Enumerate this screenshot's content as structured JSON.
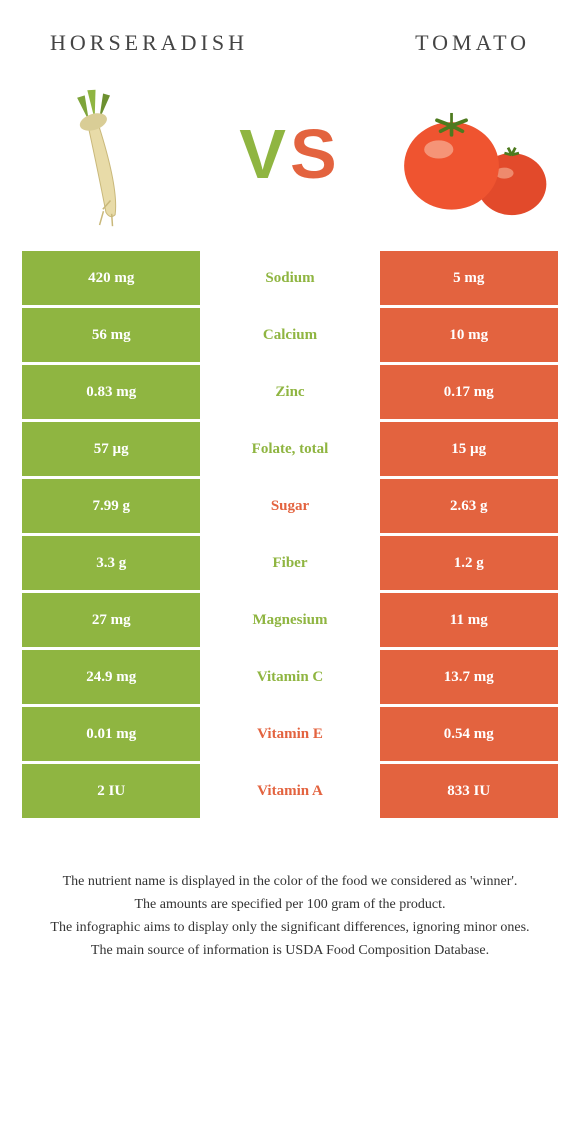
{
  "colors": {
    "left": "#8fb541",
    "right": "#e3633f"
  },
  "header": {
    "left_title": "Horseradish",
    "right_title": "Tomato",
    "vs": "VS"
  },
  "rows": [
    {
      "left": "420 mg",
      "label": "Sodium",
      "right": "5 mg",
      "winner": "left"
    },
    {
      "left": "56 mg",
      "label": "Calcium",
      "right": "10 mg",
      "winner": "left"
    },
    {
      "left": "0.83 mg",
      "label": "Zinc",
      "right": "0.17 mg",
      "winner": "left"
    },
    {
      "left": "57 µg",
      "label": "Folate, total",
      "right": "15 µg",
      "winner": "left"
    },
    {
      "left": "7.99 g",
      "label": "Sugar",
      "right": "2.63 g",
      "winner": "right"
    },
    {
      "left": "3.3 g",
      "label": "Fiber",
      "right": "1.2 g",
      "winner": "left"
    },
    {
      "left": "27 mg",
      "label": "Magnesium",
      "right": "11 mg",
      "winner": "left"
    },
    {
      "left": "24.9 mg",
      "label": "Vitamin C",
      "right": "13.7 mg",
      "winner": "left"
    },
    {
      "left": "0.01 mg",
      "label": "Vitamin E",
      "right": "0.54 mg",
      "winner": "right"
    },
    {
      "left": "2 IU",
      "label": "Vitamin A",
      "right": "833 IU",
      "winner": "right"
    }
  ],
  "footer": {
    "line1": "The nutrient name is displayed in the color of the food we considered as 'winner'.",
    "line2": "The amounts are specified per 100 gram of the product.",
    "line3": "The infographic aims to display only the significant differences, ignoring minor ones.",
    "line4": "The main source of information is USDA Food Composition Database."
  }
}
